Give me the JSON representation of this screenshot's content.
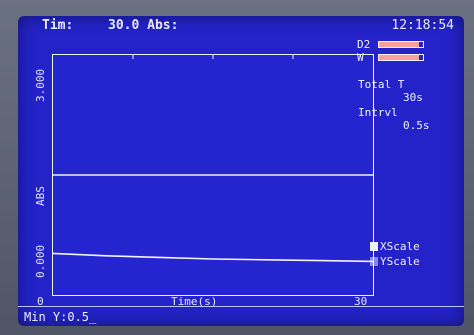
{
  "header": {
    "title": "Tim:",
    "value": "30.0 Abs:",
    "clock": "12:18:54"
  },
  "chart_data": {
    "type": "line",
    "xlabel": "Time(s)",
    "ylabel": "ABS",
    "x_ticks": [
      "0",
      "30"
    ],
    "y_ticks": [
      "0.000",
      "3.000"
    ],
    "xlim": [
      0,
      30
    ],
    "ylim": [
      0,
      3
    ],
    "series": [
      {
        "x": [
          0,
          30
        ],
        "y": [
          1.5,
          1.5
        ]
      },
      {
        "x": [
          0,
          5,
          10,
          15,
          20,
          25,
          30
        ],
        "y": [
          0.52,
          0.49,
          0.47,
          0.45,
          0.44,
          0.43,
          0.42
        ]
      }
    ],
    "colors": {
      "plot_bg": "#2525d0",
      "line": "#f2f2ff"
    }
  },
  "side": {
    "d2": {
      "label": "D2",
      "level": 0.9
    },
    "w": {
      "label": "W",
      "level": 0.9
    },
    "total_label": "Total T",
    "total_value": "30s",
    "intrvl_label": "Intrvl",
    "intrvl_value": "0.5s"
  },
  "options": {
    "xscale": {
      "label": "XScale",
      "checked": true
    },
    "yscale": {
      "label": "YScale",
      "checked": false
    }
  },
  "status": {
    "text": "Min Y:0.5_"
  },
  "colors": {
    "screen": "#2323c9",
    "text": "#f0f0ff",
    "accent": "#ff9f9f",
    "bezel": "#5e6573"
  }
}
